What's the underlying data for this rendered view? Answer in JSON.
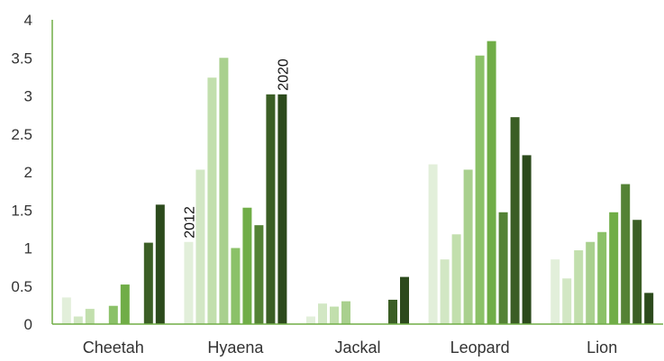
{
  "chart_data": {
    "type": "bar",
    "categories": [
      "Cheetah",
      "Hyaena",
      "Jackal",
      "Leopard",
      "Lion"
    ],
    "years_shown": 9,
    "series": [
      {
        "color": "#e2efda",
        "values": [
          0.35,
          1.08,
          0.1,
          2.1,
          0.85
        ]
      },
      {
        "color": "#d2e7c4",
        "values": [
          0.1,
          2.03,
          0.27,
          0.85,
          0.6
        ]
      },
      {
        "color": "#c2dfad",
        "values": [
          0.2,
          3.24,
          0.23,
          1.18,
          0.97
        ]
      },
      {
        "color": "#a9d08e",
        "values": [
          0.0,
          3.5,
          0.3,
          2.03,
          1.08
        ]
      },
      {
        "color": "#8bc168",
        "values": [
          0.24,
          1.0,
          0.0,
          3.53,
          1.21
        ]
      },
      {
        "color": "#70ad47",
        "values": [
          0.52,
          1.53,
          0.0,
          3.72,
          1.47
        ]
      },
      {
        "color": "#548235",
        "values": [
          0.0,
          1.3,
          0.0,
          1.47,
          1.84
        ]
      },
      {
        "color": "#3b5e25",
        "values": [
          1.07,
          3.02,
          0.32,
          2.72,
          1.37
        ]
      },
      {
        "color": "#2c4a1c",
        "values": [
          1.57,
          3.02,
          0.62,
          2.22,
          0.41
        ]
      }
    ],
    "ylim": [
      0,
      4
    ],
    "yticks": [
      "0",
      "0.5",
      "1",
      "1.5",
      "2",
      "2.5",
      "3",
      "3.5",
      "4"
    ],
    "annotations": [
      {
        "text": "2012",
        "category": "Hyaena",
        "series_index": 0
      },
      {
        "text": "2020",
        "category": "Hyaena",
        "series_index": 8
      }
    ],
    "axis_color": "#70ad47",
    "grid": false,
    "legend": "none",
    "title": "",
    "xlabel": "",
    "ylabel": ""
  }
}
